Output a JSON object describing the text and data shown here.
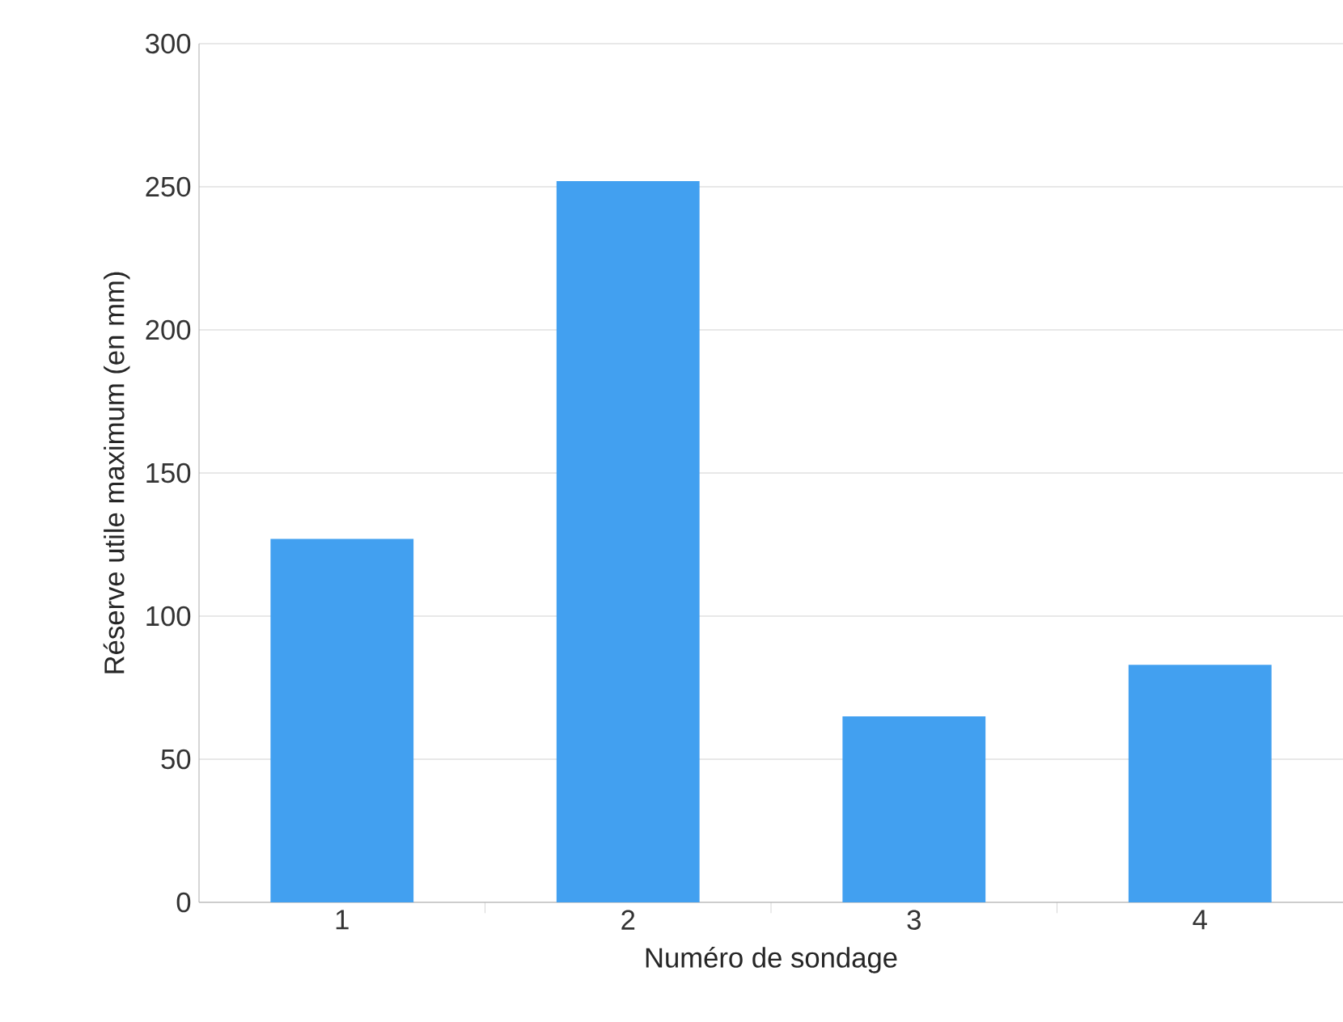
{
  "chart_data": {
    "type": "bar",
    "xlabel": "Numéro de sondage",
    "ylabel": "Réserve utile maximum (en mm)",
    "categories": [
      "1",
      "2",
      "3",
      "4"
    ],
    "values": [
      127,
      252,
      65,
      83
    ],
    "color": "#42a0f0",
    "ylim": [
      0,
      300
    ],
    "yticks": [
      0,
      50,
      100,
      150,
      200,
      250,
      300
    ],
    "grid": "y"
  }
}
